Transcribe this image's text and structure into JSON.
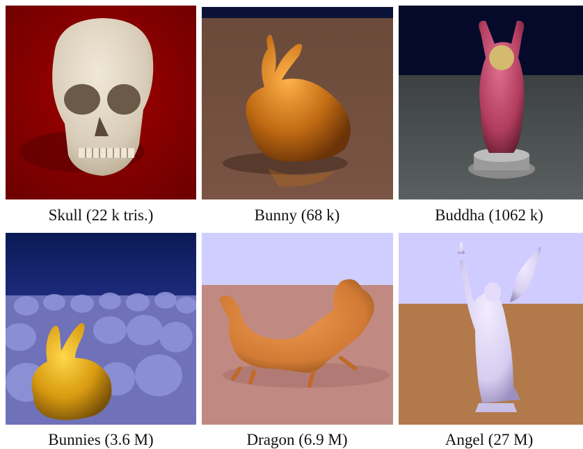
{
  "figure": {
    "panels": [
      {
        "caption": "Skull (22 k tris.)",
        "model_icon": "skull-icon"
      },
      {
        "caption": "Bunny (68 k)",
        "model_icon": "bunny-icon"
      },
      {
        "caption": "Buddha (1062 k)",
        "model_icon": "buddha-statue-icon"
      },
      {
        "caption": "Bunnies (3.6 M)",
        "model_icon": "bunnies-crowd-icon"
      },
      {
        "caption": "Dragon (6.9 M)",
        "model_icon": "dragon-icon"
      },
      {
        "caption": "Angel (27 M)",
        "model_icon": "angel-statue-icon"
      }
    ]
  },
  "colors": {
    "skull_bg": "#8a0000",
    "bunny_gold": "#c06a12",
    "buddha_pink": "#c0446a",
    "bunnies_blue": "#7a7ec8",
    "dragon_orange": "#d07a35",
    "angel_lilac": "#d6cdf0"
  }
}
